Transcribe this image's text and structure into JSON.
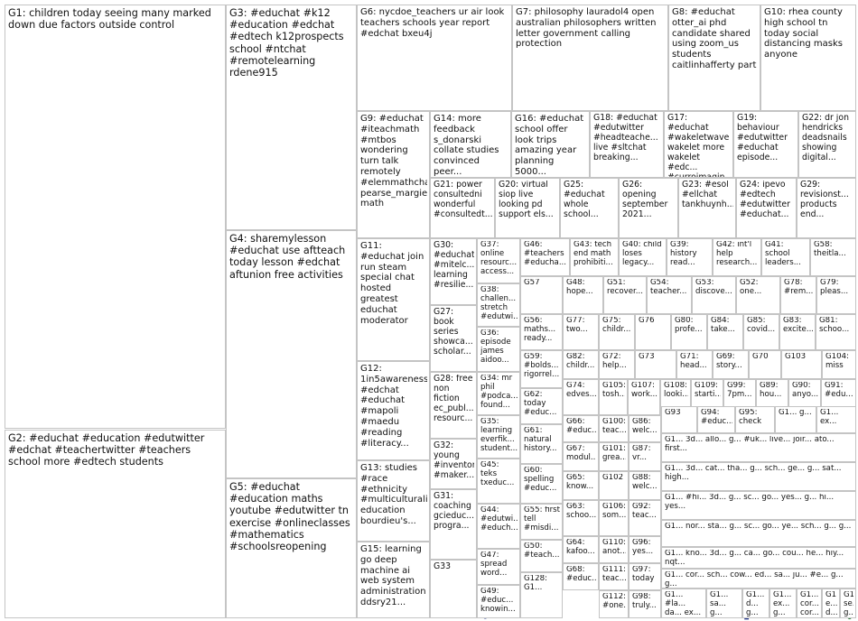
{
  "groups": [
    {
      "id": "G1",
      "label": "G1: children today seeing many marked down due factors outside control"
    },
    {
      "id": "G2",
      "label": "G2: #educhat #education #edutwitter #edchat #teachertwitter #teachers school more #edtech students"
    },
    {
      "id": "G3",
      "label": "G3: #educhat #k12 #education #edchat #edtech k12prospects school #ntchat #remotelearning rdene915"
    },
    {
      "id": "G4",
      "label": "G4: sharemylesson #educhat use aftteach today lesson #edchat aftunion free activities"
    },
    {
      "id": "G5",
      "label": "G5: #educhat #education maths youtube #edutwitter tn exercise #onlineclasses #mathematics #schoolsreopening"
    },
    {
      "id": "G6",
      "label": "G6: nycdoe_teachers ur air look teachers schools year report #edchat bxeu4j"
    },
    {
      "id": "G7",
      "label": "G7: philosophy lauradol4 open australian philosophers written letter government calling protection"
    },
    {
      "id": "G8",
      "label": "G8: #educhat otter_ai phd candidate shared using zoom_us students caitlinhafferty part"
    },
    {
      "id": "G9",
      "label": "G9: #educhat #iteachmath #mtbos wondering turn talk remotely #elemmathchat pearse_margie math"
    },
    {
      "id": "G10",
      "label": "G10: rhea county high school tn today social distancing masks anyone"
    },
    {
      "id": "G11",
      "label": "G11: #educhat join run steam special chat hosted greatest educhat moderator"
    },
    {
      "id": "G12",
      "label": "G12: 1in5awareness #edchat #educhat #mapoli #maedu #reading #literacy..."
    },
    {
      "id": "G13",
      "label": "G13: studies #race #ethnicity #multiculturali... education bourdieu's..."
    },
    {
      "id": "G14",
      "label": "G14: more feedback s_donarski collate studies convinced peer..."
    },
    {
      "id": "G15",
      "label": "G15: learning go deep machine ai web system administration ddsry21..."
    },
    {
      "id": "G16",
      "label": "G16: #educhat school offer look trips amazing year planning 5000..."
    },
    {
      "id": "G17",
      "label": "G17: #educhat #wakeletwave wakelet more wakelet #edc... #curroimagin..."
    },
    {
      "id": "G18",
      "label": "G18: #educhat #edutwitter #headteache... live #sltchat breaking..."
    },
    {
      "id": "G19",
      "label": "G19: behaviour #edutwitter #educhat episode..."
    },
    {
      "id": "G20",
      "label": "G20: virtual siop live looking pd support els..."
    },
    {
      "id": "G21",
      "label": "G21: power consultedni wonderful #consultedt..."
    },
    {
      "id": "G22",
      "label": "G22: dr jon hendricks deadsnails showing digital..."
    },
    {
      "id": "G23",
      "label": "G23: #esol #ellchat tankhuynh..."
    },
    {
      "id": "G24",
      "label": "G24: ipevo #edtech #edutwitter #educhat..."
    },
    {
      "id": "G25",
      "label": "G25: #educhat whole school..."
    },
    {
      "id": "G26",
      "label": "G26: opening september 2021..."
    },
    {
      "id": "G27",
      "label": "G27: book series showca... scholar..."
    },
    {
      "id": "G28",
      "label": "G28: free non fiction ec_publ... resourc..."
    },
    {
      "id": "G29",
      "label": "G29: revisionst... products end..."
    },
    {
      "id": "G30",
      "label": "G30: #educhat #mitelc... learning #resilie..."
    },
    {
      "id": "G31",
      "label": "G31: coaching gcieduc... progra..."
    },
    {
      "id": "G32",
      "label": "G32: young #inventor #maker..."
    },
    {
      "id": "G33",
      "label": "G33"
    },
    {
      "id": "G34",
      "label": "G34: mr phil #podca... found..."
    },
    {
      "id": "G35",
      "label": "G35: learning everfik... student..."
    },
    {
      "id": "G36",
      "label": "G36: episode james aidoo..."
    },
    {
      "id": "G37",
      "label": "G37: online resourc... access..."
    },
    {
      "id": "G38",
      "label": "G38: challen... stretch #edutwi..."
    },
    {
      "id": "G39",
      "label": "G39: history read..."
    },
    {
      "id": "G40",
      "label": "G40: child loses legacy..."
    },
    {
      "id": "G41",
      "label": "G41: school leaders..."
    },
    {
      "id": "G42",
      "label": "G42: int'l help research..."
    },
    {
      "id": "G43",
      "label": "G43: tech end math prohibiti..."
    },
    {
      "id": "G44",
      "label": "G44: #edutwi... #educh..."
    },
    {
      "id": "G45",
      "label": "G45: teks txeduc..."
    },
    {
      "id": "G46",
      "label": "G46: #teachers #educha..."
    },
    {
      "id": "G47",
      "label": "G47: spread word..."
    },
    {
      "id": "G48",
      "label": "G48: hope..."
    },
    {
      "id": "G49",
      "label": "G49: #educ... knowin..."
    },
    {
      "id": "G50",
      "label": "G50: #teach..."
    },
    {
      "id": "G51",
      "label": "G51: recover..."
    },
    {
      "id": "G52",
      "label": "G52: one..."
    },
    {
      "id": "G53",
      "label": "G53: discove..."
    },
    {
      "id": "G54",
      "label": "G54: teacher..."
    },
    {
      "id": "G55",
      "label": "G55: first tell #misdi..."
    },
    {
      "id": "G56",
      "label": "G56: maths... ready..."
    },
    {
      "id": "G57",
      "label": "G57"
    },
    {
      "id": "G58",
      "label": "G58: theitla..."
    },
    {
      "id": "G59",
      "label": "G59: #bolds... rigorrel..."
    },
    {
      "id": "G60",
      "label": "G60: spelling #educ..."
    },
    {
      "id": "G61",
      "label": "G61: natural history..."
    },
    {
      "id": "G62",
      "label": "G62: today #educ..."
    },
    {
      "id": "G63",
      "label": "G63: schoo..."
    },
    {
      "id": "G64",
      "label": "G64: kafoo..."
    },
    {
      "id": "G65",
      "label": "G65: know..."
    },
    {
      "id": "G66",
      "label": "G66: #educ..."
    },
    {
      "id": "G67",
      "label": "G67: modul..."
    },
    {
      "id": "G68",
      "label": "G68: #educ..."
    },
    {
      "id": "G69",
      "label": "G69: story..."
    },
    {
      "id": "G70",
      "label": "G70"
    },
    {
      "id": "G71",
      "label": "G71: head..."
    },
    {
      "id": "G72",
      "label": "G72: help..."
    },
    {
      "id": "G73",
      "label": "G73"
    },
    {
      "id": "G74",
      "label": "G74: edves..."
    },
    {
      "id": "G75",
      "label": "G75: childr..."
    },
    {
      "id": "G76",
      "label": "G76"
    },
    {
      "id": "G77",
      "label": "G77: two..."
    },
    {
      "id": "G78",
      "label": "G78: #rem..."
    },
    {
      "id": "G79",
      "label": "G79: pleas..."
    },
    {
      "id": "G80",
      "label": "G80: profe..."
    },
    {
      "id": "G81",
      "label": "G81: schoo..."
    },
    {
      "id": "G82",
      "label": "G82: childr..."
    },
    {
      "id": "G83",
      "label": "G83: excite..."
    },
    {
      "id": "G84",
      "label": "G84: take..."
    },
    {
      "id": "G85",
      "label": "G85: covid..."
    },
    {
      "id": "G86",
      "label": "G86: welc..."
    },
    {
      "id": "G87",
      "label": "G87: vr..."
    },
    {
      "id": "G88",
      "label": "G88: welc..."
    },
    {
      "id": "G89",
      "label": "G89: hou..."
    },
    {
      "id": "G90",
      "label": "G90: anyo..."
    },
    {
      "id": "G91",
      "label": "G91: #edu..."
    },
    {
      "id": "G92",
      "label": "G92: teac..."
    },
    {
      "id": "G93",
      "label": "G93"
    },
    {
      "id": "G94",
      "label": "G94: #educ..."
    },
    {
      "id": "G95",
      "label": "G95: check"
    },
    {
      "id": "G96",
      "label": "G96: yes..."
    },
    {
      "id": "G97",
      "label": "G97: today"
    },
    {
      "id": "G98",
      "label": "G98: truly..."
    },
    {
      "id": "G99",
      "label": "G99: 7pm..."
    },
    {
      "id": "G100",
      "label": "G100: teac..."
    },
    {
      "id": "G101",
      "label": "G101: grea..."
    },
    {
      "id": "G102",
      "label": "G102"
    },
    {
      "id": "G103",
      "label": "G103"
    },
    {
      "id": "G104",
      "label": "G104: miss"
    },
    {
      "id": "G105",
      "label": "G105: tosh..."
    },
    {
      "id": "G106",
      "label": "G106: som..."
    },
    {
      "id": "G107",
      "label": "G107: work..."
    },
    {
      "id": "G108",
      "label": "G108: looki..."
    },
    {
      "id": "G109",
      "label": "G109: starti..."
    },
    {
      "id": "G110",
      "label": "G110: anot..."
    },
    {
      "id": "G111",
      "label": "G111: teac..."
    },
    {
      "id": "G112",
      "label": "G112: #one..."
    },
    {
      "id": "G113",
      "label": "G1... 3d... allo... g... #uk... live... joir... ato... first..."
    },
    {
      "id": "G114",
      "label": "G1... 3d... cat... tha... g... sch... ge... g... sat... high..."
    },
    {
      "id": "G115",
      "label": "G1... #hi... 3d... g... sc... go... yes... g... hi... yes..."
    },
    {
      "id": "G116",
      "label": "G1... nor... sta... g... sc... go... ye... sch... g... g..."
    },
    {
      "id": "G117",
      "label": "G1... kno... 3d... g... ca... go... cou... he... hiy... nqt..."
    },
    {
      "id": "G118",
      "label": "G1... cor... sch... cow... ed... sa... ju... #e... g... g..."
    },
    {
      "id": "G119",
      "label": "G1... #la... da... ex... g..."
    },
    {
      "id": "G120",
      "label": "G1... sa... g... #e... g..."
    },
    {
      "id": "G121",
      "label": "G1... d... g... d... g..."
    },
    {
      "id": "G122",
      "label": "G1... ex... g... #e..."
    },
    {
      "id": "G123",
      "label": "G1... cor... cor... pe... sc..."
    },
    {
      "id": "G124",
      "label": "G1... e... d... g..."
    },
    {
      "id": "G125",
      "label": "G1... se... g..."
    },
    {
      "id": "G126",
      "label": "G1... g..."
    },
    {
      "id": "G127",
      "label": "G1... ex..."
    },
    {
      "id": "G128",
      "label": "G128: G1..."
    }
  ]
}
